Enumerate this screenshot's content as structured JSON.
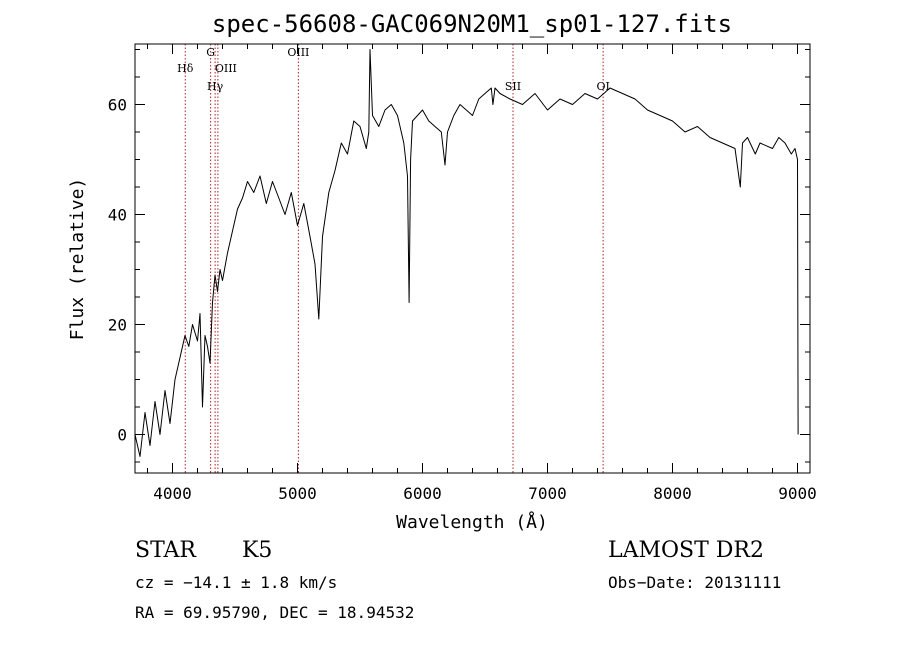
{
  "chart_data": {
    "type": "line",
    "title": "spec-56608-GAC069N20M1_sp01-127.fits",
    "xlabel": "Wavelength (Å)",
    "ylabel": "Flux (relative)",
    "xlim": [
      3700,
      9100
    ],
    "ylim": [
      -7,
      71
    ],
    "xticks": [
      4000,
      5000,
      6000,
      7000,
      8000,
      9000
    ],
    "yticks": [
      0,
      20,
      40,
      60
    ],
    "grid": false,
    "series": [
      {
        "color": "#000000",
        "x": [
          3700,
          3740,
          3780,
          3820,
          3860,
          3900,
          3940,
          3980,
          4020,
          4060,
          4100,
          4130,
          4160,
          4200,
          4220,
          4240,
          4260,
          4280,
          4300,
          4320,
          4340,
          4360,
          4380,
          4400,
          4440,
          4480,
          4520,
          4560,
          4600,
          4650,
          4700,
          4750,
          4800,
          4850,
          4900,
          4950,
          5000,
          5050,
          5100,
          5140,
          5170,
          5200,
          5250,
          5300,
          5350,
          5400,
          5450,
          5500,
          5550,
          5570,
          5580,
          5600,
          5650,
          5700,
          5750,
          5800,
          5850,
          5880,
          5893,
          5905,
          5920,
          5960,
          6000,
          6050,
          6100,
          6150,
          6180,
          6200,
          6250,
          6300,
          6350,
          6400,
          6450,
          6500,
          6550,
          6563,
          6580,
          6620,
          6700,
          6800,
          6900,
          7000,
          7100,
          7200,
          7300,
          7400,
          7500,
          7600,
          7700,
          7800,
          7900,
          8000,
          8100,
          8200,
          8300,
          8400,
          8500,
          8542,
          8560,
          8600,
          8662,
          8700,
          8800,
          8850,
          8900,
          8950,
          8980,
          9000,
          9005
        ],
        "y": [
          0,
          -4,
          4,
          -2,
          6,
          0,
          8,
          2,
          10,
          14,
          18,
          16,
          20,
          17,
          22,
          5,
          18,
          16,
          13,
          24,
          29,
          26,
          30,
          28,
          33,
          37,
          41,
          43,
          46,
          44,
          47,
          42,
          46,
          43,
          40,
          44,
          38,
          42,
          36,
          31,
          21,
          36,
          44,
          48,
          53,
          51,
          57,
          56,
          52,
          55,
          70,
          58,
          56,
          59,
          60,
          58,
          53,
          47,
          24,
          50,
          57,
          58,
          59,
          57,
          56,
          55,
          49,
          55,
          58,
          60,
          59,
          58,
          61,
          62,
          63,
          60,
          63,
          62,
          61,
          60,
          62,
          59,
          61,
          60,
          62,
          61,
          63,
          62,
          61,
          59,
          58,
          57,
          55,
          56,
          54,
          53,
          52,
          45,
          53,
          54,
          51,
          53,
          52,
          54,
          53,
          51,
          52,
          50,
          0
        ]
      }
    ],
    "lines": [
      {
        "label": "Hδ",
        "x": 4102
      },
      {
        "label": "G",
        "x": 4305
      },
      {
        "label": "OIII",
        "x": 4363
      },
      {
        "label": "Hγ",
        "x": 4341
      },
      {
        "label": "OIII",
        "x": 5007
      },
      {
        "label": "SII",
        "x": 6724
      },
      {
        "label": "OI",
        "x": 7445
      }
    ],
    "line_color": "#b22222"
  },
  "footer": {
    "object_class": "STAR",
    "subclass": "K5",
    "survey": "LAMOST DR2",
    "redshift": "cz = −14.1 ± 1.8 km/s",
    "obs_date": "Obs−Date: 20131111",
    "coords": "RA =  69.95790, DEC =  18.94532"
  }
}
